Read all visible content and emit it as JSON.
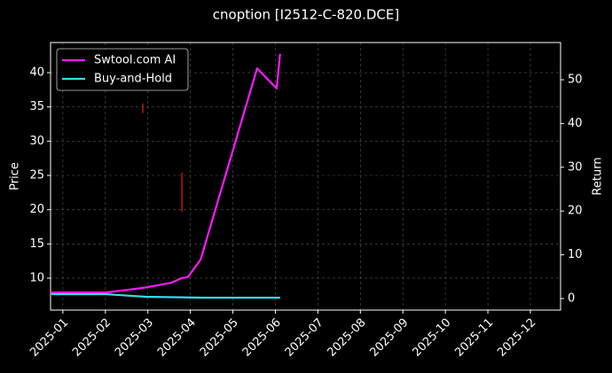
{
  "chart_data": {
    "type": "line",
    "title": "cnoption [I2512-C-820.DCE]",
    "y_label": "Price",
    "y2_label": "Return",
    "xlim": [
      0.71,
      12.71
    ],
    "xticks": [
      {
        "value": 1,
        "label": "2025-01"
      },
      {
        "value": 2,
        "label": "2025-02"
      },
      {
        "value": 3,
        "label": "2025-03"
      },
      {
        "value": 4,
        "label": "2025-04"
      },
      {
        "value": 5,
        "label": "2025-05"
      },
      {
        "value": 6,
        "label": "2025-06"
      },
      {
        "value": 7,
        "label": "2025-07"
      },
      {
        "value": 8,
        "label": "2025-08"
      },
      {
        "value": 9,
        "label": "2025-09"
      },
      {
        "value": 10,
        "label": "2025-10"
      },
      {
        "value": 11,
        "label": "2025-11"
      },
      {
        "value": 12,
        "label": "2025-12"
      }
    ],
    "ylim": [
      5.34,
      44.4
    ],
    "yticks": [
      10,
      15,
      20,
      25,
      30,
      35,
      40
    ],
    "y2lim": [
      -2.63,
      58.5
    ],
    "y2ticks": [
      0,
      10,
      20,
      30,
      40,
      50
    ],
    "grid": true,
    "legend": "upper left",
    "series": [
      {
        "name": "Swtool.com AI",
        "color": "#ff1aff",
        "axis": "y2",
        "x": [
          0.73,
          2.02,
          2.86,
          3.55,
          3.8,
          3.94,
          4.24,
          5.57,
          6.03,
          6.11
        ],
        "values": [
          1.4,
          1.4,
          2.4,
          3.6,
          4.7,
          4.9,
          8.9,
          52.6,
          48.0,
          55.9
        ]
      },
      {
        "name": "Buy-and-Hold",
        "color": "#33dde6",
        "axis": "y2",
        "x": [
          0.73,
          2.02,
          2.96,
          4.32,
          6.11
        ],
        "values": [
          1.0,
          1.0,
          0.4,
          0.2,
          0.2
        ]
      }
    ],
    "price_ranges": {
      "color": "#e0201c",
      "x": [
        2.88,
        3.8
      ],
      "low": [
        34.1,
        19.7
      ],
      "high": [
        35.5,
        25.4
      ]
    }
  }
}
